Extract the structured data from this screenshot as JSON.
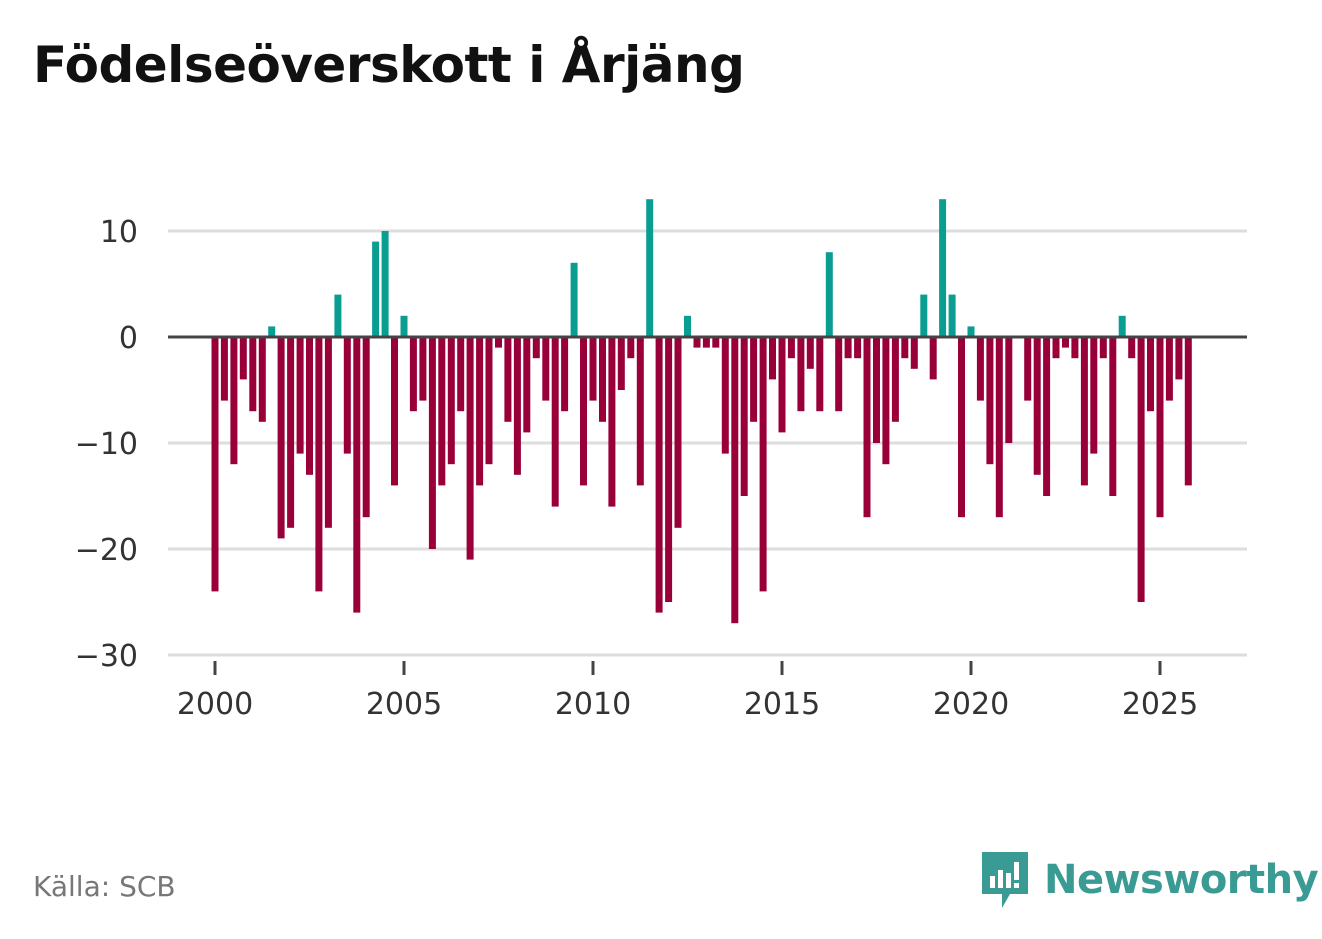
{
  "title": "Födelseöverskott i Årjäng",
  "source": "Källa: SCB",
  "brand": "Newsworthy",
  "colors": {
    "positive": "#0a9e92",
    "negative": "#990039",
    "grid": "#dddddd",
    "zero": "#444444",
    "brand": "#3a9a94"
  },
  "chart_data": {
    "type": "bar",
    "title": "Födelseöverskott i Årjäng",
    "xlabel": "",
    "ylabel": "",
    "ylim": [
      -30,
      13
    ],
    "yticks": [
      10,
      0,
      -10,
      -20,
      -30
    ],
    "ytick_labels": [
      "10",
      "0",
      "−10",
      "−20",
      "−30"
    ],
    "xticks": [
      2000,
      2005,
      2010,
      2015,
      2020,
      2025
    ],
    "xtick_labels": [
      "2000",
      "2005",
      "2010",
      "2015",
      "2020",
      "2025"
    ],
    "grid": true,
    "x_start": 2000.0,
    "x_step": 0.25,
    "values": [
      -24,
      -6,
      -12,
      -4,
      -7,
      -8,
      1,
      -19,
      -18,
      -11,
      -13,
      -24,
      -18,
      4,
      -11,
      -26,
      -17,
      9,
      10,
      -14,
      2,
      -7,
      -6,
      -20,
      -14,
      -12,
      -7,
      -21,
      -14,
      -12,
      -1,
      -8,
      -13,
      -9,
      -2,
      -6,
      -16,
      -7,
      7,
      -14,
      -6,
      -8,
      -16,
      -5,
      -2,
      -14,
      13,
      -26,
      -25,
      -18,
      2,
      -1,
      -1,
      -1,
      -11,
      -27,
      -15,
      -8,
      -24,
      -4,
      -9,
      -2,
      -7,
      -3,
      -7,
      8,
      -7,
      -2,
      -2,
      -17,
      -10,
      -12,
      -8,
      -2,
      -3,
      4,
      -4,
      13,
      4,
      -17,
      1,
      -6,
      -12,
      -17,
      -10,
      0,
      -6,
      -13,
      -15,
      -2,
      -1,
      -2,
      -14,
      -11,
      -2,
      -15,
      2,
      -2,
      -25,
      -7,
      -17,
      -6,
      -4,
      -14
    ]
  }
}
